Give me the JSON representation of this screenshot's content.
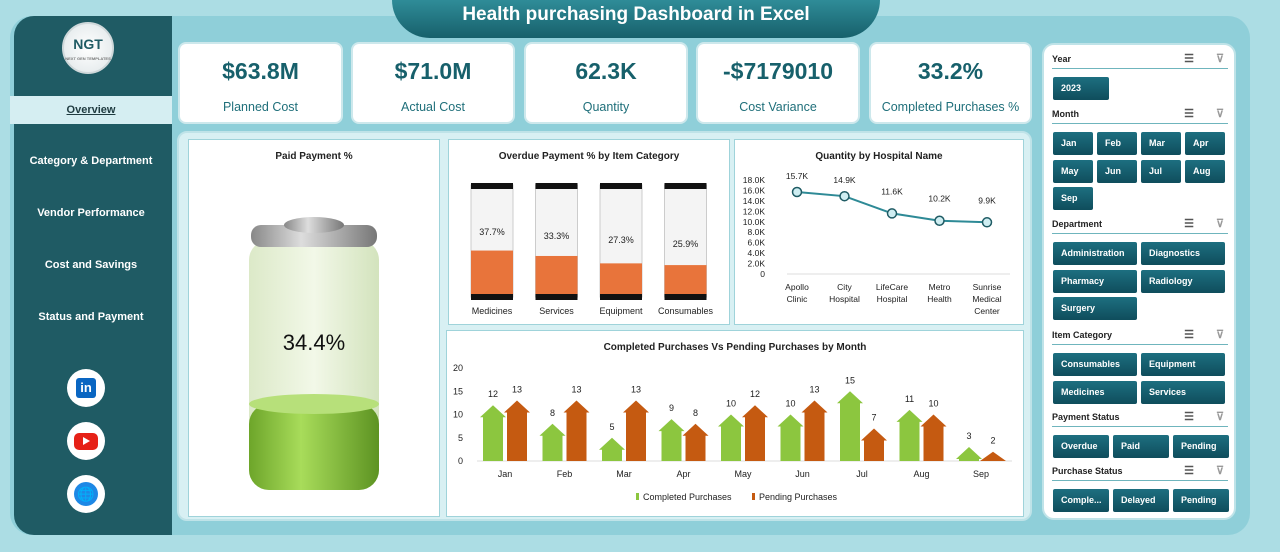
{
  "title": "Health purchasing  Dashboard in Excel",
  "logo": {
    "text": "NGT",
    "subtitle": "NEXT GEN TEMPLATES"
  },
  "nav": [
    {
      "label": "Overview",
      "active": true
    },
    {
      "label": "Category & Department"
    },
    {
      "label": "Vendor Performance"
    },
    {
      "label": "Cost and Savings"
    },
    {
      "label": "Status and Payment"
    }
  ],
  "social": [
    {
      "icon": "linkedin-icon",
      "label": "in"
    },
    {
      "icon": "youtube-icon"
    },
    {
      "icon": "globe-icon"
    }
  ],
  "kpis": [
    {
      "value": "$63.8M",
      "label": "Planned Cost"
    },
    {
      "value": "$71.0M",
      "label": "Actual Cost"
    },
    {
      "value": "62.3K",
      "label": "Quantity"
    },
    {
      "value": "-$7179010",
      "label": "Cost Variance"
    },
    {
      "value": "33.2%",
      "label": "Completed Purchases %"
    }
  ],
  "colors": {
    "accent": "#17606b",
    "orange": "#e8743b",
    "green": "#8cc63f",
    "pending": "#c55a11"
  },
  "chart_data": [
    {
      "type": "gauge",
      "title": "Paid Payment %",
      "value": 34.4,
      "label": "34.4%"
    },
    {
      "type": "bar",
      "title": "Overdue Payment % by Item Category",
      "categories": [
        "Medicines",
        "Services",
        "Equipment",
        "Consumables"
      ],
      "values": [
        37.7,
        33.3,
        27.3,
        25.9
      ],
      "labels": [
        "37.7%",
        "33.3%",
        "27.3%",
        "25.9%"
      ],
      "ylim": [
        0,
        100
      ]
    },
    {
      "type": "line",
      "title": "Quantity by Hospital Name",
      "categories": [
        [
          "Apollo",
          "Clinic"
        ],
        [
          "City",
          "Hospital"
        ],
        [
          "LifeCare",
          "Hospital"
        ],
        [
          "Metro",
          "Health"
        ],
        [
          "Sunrise",
          "Medical",
          "Center"
        ]
      ],
      "values": [
        15.7,
        14.9,
        11.6,
        10.2,
        9.9
      ],
      "labels": [
        "15.7K",
        "14.9K",
        "11.6K",
        "10.2K",
        "9.9K"
      ],
      "yticks": [
        "0",
        "2.0K",
        "4.0K",
        "6.0K",
        "8.0K",
        "10.0K",
        "12.0K",
        "14.0K",
        "16.0K",
        "18.0K"
      ],
      "ylim": [
        0,
        18
      ]
    },
    {
      "type": "bar",
      "title": "Completed Purchases Vs Pending Purchases by Month",
      "categories": [
        "Jan",
        "Feb",
        "Mar",
        "Apr",
        "May",
        "Jun",
        "Jul",
        "Aug",
        "Sep"
      ],
      "series": [
        {
          "name": "Completed Purchases",
          "values": [
            12,
            8,
            5,
            9,
            10,
            10,
            15,
            11,
            3
          ]
        },
        {
          "name": "Pending Purchases",
          "values": [
            13,
            13,
            13,
            8,
            12,
            13,
            7,
            10,
            2
          ]
        }
      ],
      "yticks": [
        "0",
        "5",
        "10",
        "15",
        "20"
      ],
      "ylim": [
        0,
        20
      ],
      "legend": "bottom"
    }
  ],
  "slicers": [
    {
      "title": "Year",
      "items": [
        "2023"
      ]
    },
    {
      "title": "Month",
      "items": [
        "Jan",
        "Feb",
        "Mar",
        "Apr",
        "May",
        "Jun",
        "Jul",
        "Aug",
        "Sep"
      ]
    },
    {
      "title": "Department",
      "items": [
        "Administration",
        "Diagnostics",
        "Pharmacy",
        "Radiology",
        "Surgery"
      ]
    },
    {
      "title": "Item Category",
      "items": [
        "Consumables",
        "Equipment",
        "Medicines",
        "Services"
      ]
    },
    {
      "title": "Payment Status",
      "items": [
        "Overdue",
        "Paid",
        "Pending"
      ]
    },
    {
      "title": "Purchase Status",
      "items": [
        "Comple...",
        "Delayed",
        "Pending"
      ]
    }
  ]
}
